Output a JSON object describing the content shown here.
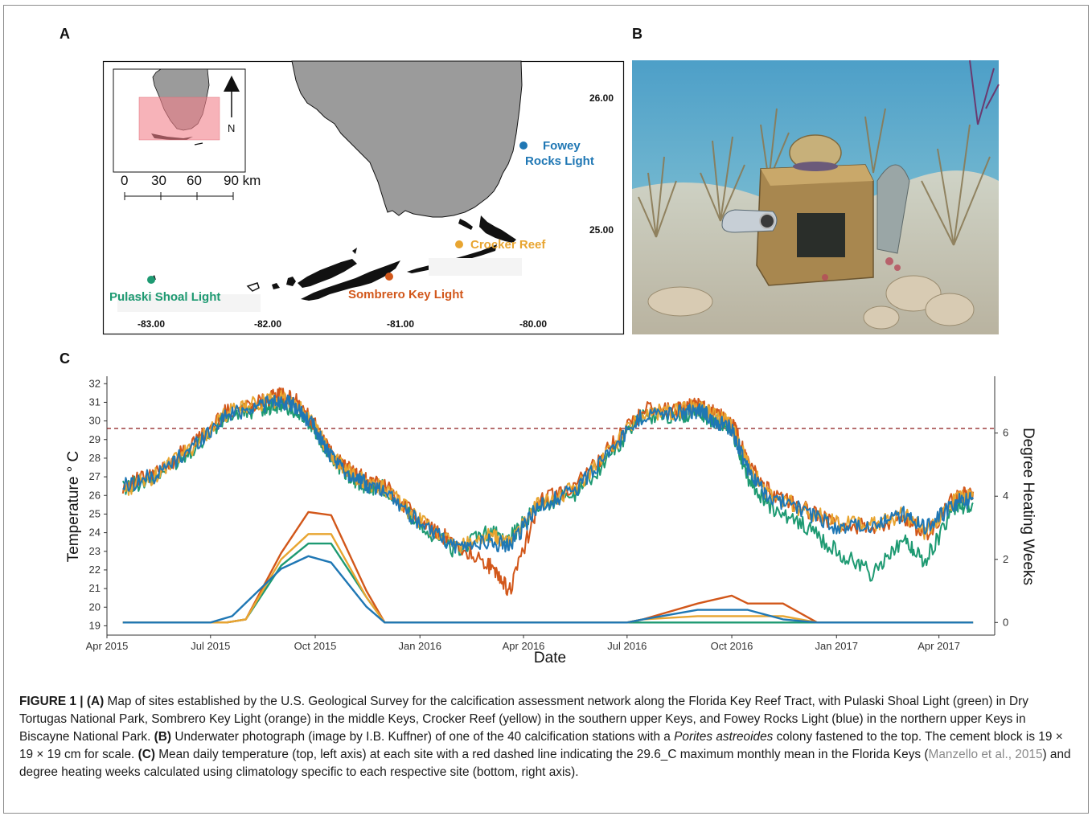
{
  "panels": {
    "a": "A",
    "b": "B",
    "c": "C"
  },
  "map": {
    "lat_ticks": [
      "26.00",
      "25.00"
    ],
    "lon_ticks": [
      "-83.00",
      "-82.00",
      "-81.00",
      "-80.00"
    ],
    "inset": {
      "scale_ticks": [
        "0",
        "30",
        "60",
        "90 km"
      ],
      "north_label": "N"
    },
    "sites": [
      {
        "name": "Fowey Rocks Light",
        "line1": "Fowey",
        "line2": "Rocks Light",
        "color": "#1f77b4"
      },
      {
        "name": "Crocker Reef",
        "color": "#e8a531"
      },
      {
        "name": "Sombrero Key Light",
        "color": "#d2571a"
      },
      {
        "name": "Pulaski Shoal Light",
        "color": "#1e9a72"
      }
    ]
  },
  "photo": {
    "subject": "underwater calcification station with coral colony on cement block"
  },
  "chart": {
    "ylabel_left": "Temperature ° C",
    "ylabel_right": "Degree Heating Weeks",
    "xlabel": "Date",
    "y_ticks_left": [
      "32",
      "31",
      "30",
      "29",
      "28",
      "27",
      "26",
      "25",
      "24",
      "23",
      "22",
      "21",
      "20",
      "19"
    ],
    "y_ticks_right": [
      "6",
      "4",
      "2",
      "0"
    ],
    "x_ticks": [
      "Apr 2015",
      "Jul 2015",
      "Oct 2015",
      "Jan 2016",
      "Apr 2016",
      "Jul 2016",
      "Oct 2016",
      "Jan 2017",
      "Apr 2017"
    ]
  },
  "chart_data": {
    "type": "line",
    "xlabel": "Date",
    "ylabel": "Temperature ° C",
    "ylabel_right": "Degree Heating Weeks",
    "ylim": [
      18.5,
      32.4
    ],
    "ylim_right": [
      -0.4,
      7.8
    ],
    "reference_line": {
      "y": 29.6,
      "style": "dashed",
      "color": "#8b1a1a"
    },
    "x": [
      "2015-04-15",
      "2015-05-15",
      "2015-06-15",
      "2015-07-15",
      "2015-08-15",
      "2015-09-01",
      "2015-09-15",
      "2015-10-01",
      "2015-10-15",
      "2015-11-01",
      "2015-11-15",
      "2015-12-01",
      "2016-01-01",
      "2016-02-01",
      "2016-03-01",
      "2016-03-20",
      "2016-04-15",
      "2016-05-15",
      "2016-06-15",
      "2016-07-15",
      "2016-08-15",
      "2016-09-01",
      "2016-09-15",
      "2016-10-01",
      "2016-10-15",
      "2016-11-01",
      "2016-12-01",
      "2017-01-01",
      "2017-02-01",
      "2017-03-01",
      "2017-03-20",
      "2017-04-15",
      "2017-05-01"
    ],
    "series": [
      {
        "name": "Pulaski Shoal Light",
        "color": "#1e9a72",
        "axis": "left",
        "values": [
          26.4,
          27.0,
          28.5,
          30.2,
          30.7,
          30.9,
          30.5,
          29.5,
          28.0,
          27.0,
          26.5,
          26.4,
          24.4,
          23.0,
          24.0,
          23.7,
          25.5,
          26.0,
          28.0,
          30.3,
          30.3,
          30.5,
          30.0,
          29.6,
          27.0,
          25.5,
          24.5,
          23.0,
          21.8,
          23.5,
          22.5,
          25.3,
          25.6
        ]
      },
      {
        "name": "Sombrero Key Light",
        "color": "#d2571a",
        "axis": "left",
        "values": [
          26.5,
          27.2,
          28.7,
          30.5,
          31.1,
          31.4,
          31.0,
          29.8,
          28.2,
          27.3,
          26.8,
          26.5,
          24.7,
          23.4,
          22.3,
          20.9,
          25.7,
          26.4,
          28.5,
          30.6,
          30.6,
          30.9,
          30.4,
          29.9,
          27.8,
          26.3,
          25.4,
          24.4,
          24.3,
          24.9,
          23.8,
          25.9,
          26.2
        ]
      },
      {
        "name": "Crocker Reef",
        "color": "#e8a531",
        "axis": "left",
        "values": [
          26.3,
          27.1,
          28.6,
          30.4,
          31.0,
          31.2,
          30.8,
          29.7,
          28.1,
          27.2,
          26.7,
          26.4,
          24.6,
          23.3,
          23.8,
          23.5,
          25.6,
          26.3,
          28.4,
          30.5,
          30.5,
          30.8,
          30.3,
          29.8,
          27.6,
          26.2,
          25.3,
          24.5,
          24.4,
          25.0,
          24.0,
          25.8,
          26.0
        ]
      },
      {
        "name": "Fowey Rocks Light",
        "color": "#1f77b4",
        "axis": "left",
        "values": [
          26.5,
          27.1,
          28.6,
          30.3,
          30.9,
          31.1,
          30.7,
          29.6,
          28.0,
          27.1,
          26.6,
          26.3,
          24.5,
          23.2,
          23.5,
          23.3,
          25.5,
          26.2,
          28.3,
          30.3,
          30.4,
          30.6,
          30.1,
          29.6,
          27.4,
          26.0,
          25.2,
          24.3,
          24.3,
          25.0,
          24.2,
          25.6,
          25.8
        ]
      }
    ],
    "dhw_series": [
      {
        "name": "Pulaski Shoal Light",
        "color": "#1e9a72",
        "axis": "right",
        "x": [
          "2015-04-15",
          "2015-07-15",
          "2015-08-01",
          "2015-09-01",
          "2015-09-25",
          "2015-10-15",
          "2015-11-15",
          "2015-12-01",
          "2016-07-01",
          "2016-07-15",
          "2016-09-01",
          "2016-10-15",
          "2016-11-15",
          "2017-05-01"
        ],
        "values": [
          0,
          0,
          0.1,
          1.8,
          2.5,
          2.5,
          0.8,
          0,
          0,
          0,
          0,
          0,
          0,
          0
        ]
      },
      {
        "name": "Sombrero Key Light",
        "color": "#d2571a",
        "axis": "right",
        "x": [
          "2015-04-15",
          "2015-07-15",
          "2015-08-01",
          "2015-09-01",
          "2015-09-25",
          "2015-10-15",
          "2015-11-15",
          "2015-12-01",
          "2016-07-01",
          "2016-07-15",
          "2016-09-01",
          "2016-10-01",
          "2016-10-15",
          "2016-11-15",
          "2016-12-15",
          "2017-05-01"
        ],
        "values": [
          0,
          0,
          0.1,
          2.2,
          3.5,
          3.4,
          1.0,
          0,
          0,
          0.1,
          0.6,
          0.85,
          0.6,
          0.6,
          0,
          0
        ]
      },
      {
        "name": "Crocker Reef",
        "color": "#e8a531",
        "axis": "right",
        "x": [
          "2015-04-15",
          "2015-07-15",
          "2015-08-01",
          "2015-09-01",
          "2015-09-25",
          "2015-10-15",
          "2015-11-15",
          "2015-12-01",
          "2016-07-01",
          "2016-07-15",
          "2016-09-01",
          "2016-10-15",
          "2016-11-15",
          "2016-12-15",
          "2017-05-01"
        ],
        "values": [
          0,
          0,
          0.1,
          2.0,
          2.8,
          2.8,
          0.8,
          0,
          0,
          0.1,
          0.2,
          0.2,
          0.2,
          0,
          0
        ]
      },
      {
        "name": "Fowey Rocks Light",
        "color": "#1f77b4",
        "axis": "right",
        "x": [
          "2015-04-15",
          "2015-07-01",
          "2015-07-20",
          "2015-09-01",
          "2015-09-25",
          "2015-10-15",
          "2015-11-15",
          "2015-12-01",
          "2016-07-01",
          "2016-07-15",
          "2016-09-01",
          "2016-10-15",
          "2016-11-15",
          "2016-12-15",
          "2017-05-01"
        ],
        "values": [
          0,
          0,
          0.2,
          1.7,
          2.1,
          1.9,
          0.5,
          0,
          0,
          0.1,
          0.4,
          0.4,
          0.1,
          0,
          0
        ]
      }
    ]
  },
  "caption": {
    "label": "FIGURE 1 | ",
    "a_tag": "(A)",
    "a_text": " Map of sites established by the U.S. Geological Survey for the calcification assessment network along the Florida Key Reef Tract, with Pulaski Shoal Light (green) in Dry Tortugas National Park, Sombrero Key Light (orange) in the middle Keys, Crocker Reef (yellow) in the southern upper Keys, and Fowey Rocks Light (blue) in the northern upper Keys in Biscayne National Park. ",
    "b_tag": "(B)",
    "b_text": " Underwater photograph (image by I.B. Kuffner) of one of the 40 calcification stations with a ",
    "species": "Porites astreoides",
    "b_text2": " colony fastened to the top. The cement block is 19 × 19 × 19 cm for scale. ",
    "c_tag": "(C)",
    "c_text": " Mean daily temperature (top, left axis) at each site with a red dashed line indicating the 29.6_C maximum monthly mean in the Florida Keys (",
    "c_ref": "Manzello et al., 2015",
    "c_text2": ") and degree heating weeks calculated using climatology specific to each respective site (bottom, right axis)."
  }
}
